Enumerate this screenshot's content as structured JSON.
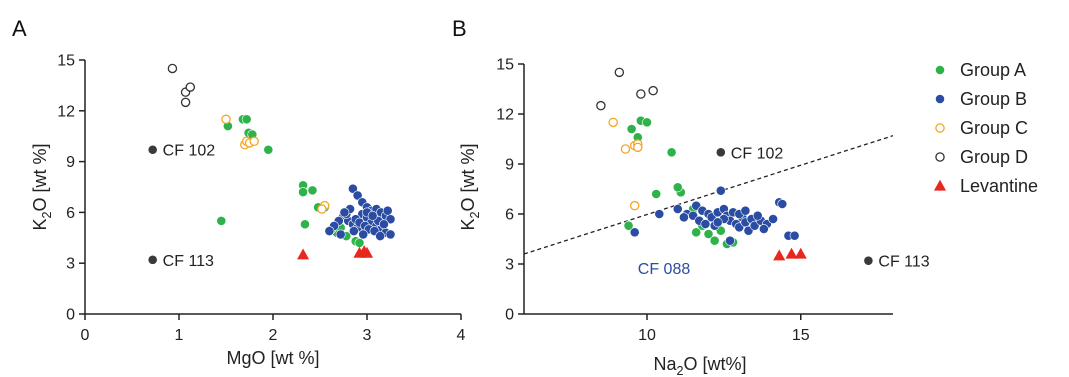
{
  "chart_data": [
    {
      "type": "scatter",
      "panel_label": "A",
      "ylabel": {
        "main": "K",
        "sub": "2",
        "rest": "O [wt %]"
      },
      "xlabel": {
        "main": "MgO [wt %]",
        "sub": "",
        "rest": ""
      },
      "xlim": [
        0,
        4
      ],
      "ylim": [
        0,
        15
      ],
      "xticks": [
        "0",
        "1",
        "2",
        "3",
        "4"
      ],
      "yticks": [
        "0",
        "3",
        "6",
        "9",
        "12",
        "15"
      ],
      "series": [
        {
          "name": "Group A",
          "marker": "circle",
          "color": "#2db34a",
          "fill": "#2db34a",
          "points": [
            [
              1.52,
              11.1
            ],
            [
              1.68,
              11.5
            ],
            [
              1.72,
              11.5
            ],
            [
              1.74,
              10.7
            ],
            [
              1.78,
              10.6
            ],
            [
              1.95,
              9.7
            ],
            [
              1.45,
              5.5
            ],
            [
              2.32,
              7.6
            ],
            [
              2.32,
              7.2
            ],
            [
              2.42,
              7.3
            ],
            [
              2.48,
              6.3
            ],
            [
              2.55,
              6.3
            ],
            [
              2.34,
              5.3
            ],
            [
              2.68,
              4.8
            ],
            [
              2.72,
              5.1
            ],
            [
              2.78,
              4.6
            ],
            [
              2.88,
              4.3
            ],
            [
              2.92,
              4.2
            ],
            [
              2.62,
              5.0
            ]
          ]
        },
        {
          "name": "Group B",
          "marker": "circle",
          "color": "#2a4da3",
          "fill": "#2a4da3",
          "points": [
            [
              2.85,
              7.4
            ],
            [
              2.9,
              7.0
            ],
            [
              2.95,
              6.6
            ],
            [
              3.0,
              6.3
            ],
            [
              3.05,
              6.1
            ],
            [
              3.1,
              6.2
            ],
            [
              3.15,
              6.0
            ],
            [
              3.2,
              5.8
            ],
            [
              3.25,
              5.6
            ],
            [
              2.75,
              5.8
            ],
            [
              2.8,
              5.5
            ],
            [
              2.85,
              5.3
            ],
            [
              2.9,
              5.1
            ],
            [
              2.95,
              5.9
            ],
            [
              3.0,
              5.7
            ],
            [
              3.05,
              5.4
            ],
            [
              3.1,
              5.2
            ],
            [
              3.15,
              5.0
            ],
            [
              3.2,
              4.8
            ],
            [
              3.25,
              4.7
            ],
            [
              2.7,
              5.5
            ],
            [
              2.78,
              5.9
            ],
            [
              2.82,
              6.2
            ],
            [
              2.88,
              5.6
            ],
            [
              2.92,
              5.4
            ],
            [
              2.98,
              5.2
            ],
            [
              3.02,
              5.0
            ],
            [
              3.08,
              4.9
            ],
            [
              3.12,
              5.5
            ],
            [
              3.18,
              5.3
            ],
            [
              2.65,
              5.2
            ],
            [
              2.6,
              4.9
            ],
            [
              2.72,
              4.7
            ],
            [
              3.22,
              6.1
            ],
            [
              3.0,
              6.0
            ],
            [
              2.96,
              4.7
            ],
            [
              2.86,
              4.9
            ],
            [
              3.06,
              5.8
            ],
            [
              2.76,
              6.0
            ],
            [
              3.14,
              4.6
            ]
          ]
        },
        {
          "name": "Group C",
          "marker": "circle-open",
          "color": "#f5a623",
          "fill": "#ffffff",
          "points": [
            [
              1.5,
              11.5
            ],
            [
              1.7,
              10.0
            ],
            [
              1.72,
              10.2
            ],
            [
              1.75,
              10.1
            ],
            [
              1.8,
              10.2
            ],
            [
              2.55,
              6.4
            ],
            [
              2.52,
              6.2
            ]
          ]
        },
        {
          "name": "Group D",
          "marker": "circle-open",
          "color": "#333333",
          "fill": "#ffffff",
          "points": [
            [
              0.93,
              14.5
            ],
            [
              1.07,
              13.1
            ],
            [
              1.12,
              13.4
            ],
            [
              1.07,
              12.5
            ]
          ]
        },
        {
          "name": "Levantine",
          "marker": "triangle",
          "color": "#e8281e",
          "fill": "#e8281e",
          "points": [
            [
              2.32,
              3.5
            ],
            [
              2.92,
              3.6
            ],
            [
              2.97,
              3.7
            ],
            [
              3.0,
              3.6
            ]
          ]
        },
        {
          "name": "",
          "marker": "circle",
          "color": "#3a3a3a",
          "fill": "#3a3a3a",
          "points": [
            [
              0.72,
              9.7
            ],
            [
              0.72,
              3.2
            ]
          ]
        }
      ],
      "annotations": [
        {
          "text": "CF 102",
          "x": 0.72,
          "y": 9.7,
          "color": "#222222"
        },
        {
          "text": "CF 113",
          "x": 0.72,
          "y": 3.2,
          "color": "#222222"
        }
      ]
    },
    {
      "type": "scatter",
      "panel_label": "B",
      "ylabel": {
        "main": "K",
        "sub": "2",
        "rest": "O [wt %]"
      },
      "xlabel": {
        "main": "Na",
        "sub": "2",
        "rest": "O [wt%]"
      },
      "xlim": [
        6,
        18
      ],
      "ylim": [
        0,
        15
      ],
      "xticks": [
        "10",
        "15"
      ],
      "yticks": [
        "0",
        "3",
        "6",
        "9",
        "12",
        "15"
      ],
      "trendline": {
        "from": [
          6,
          3.6
        ],
        "to": [
          18,
          10.7
        ],
        "style": "dashed"
      },
      "series": [
        {
          "name": "Group A",
          "marker": "circle",
          "color": "#2db34a",
          "fill": "#2db34a",
          "points": [
            [
              9.5,
              11.1
            ],
            [
              9.8,
              11.6
            ],
            [
              10.0,
              11.5
            ],
            [
              9.7,
              10.6
            ],
            [
              10.8,
              9.7
            ],
            [
              10.3,
              7.2
            ],
            [
              11.1,
              7.3
            ],
            [
              11.0,
              7.6
            ],
            [
              11.5,
              6.3
            ],
            [
              11.8,
              5.3
            ],
            [
              12.0,
              4.8
            ],
            [
              12.2,
              4.4
            ],
            [
              12.6,
              4.2
            ],
            [
              12.8,
              4.3
            ],
            [
              9.4,
              5.3
            ],
            [
              11.6,
              4.9
            ],
            [
              12.4,
              5.0
            ]
          ]
        },
        {
          "name": "Group B",
          "marker": "circle",
          "color": "#2a4da3",
          "fill": "#2a4da3",
          "points": [
            [
              12.4,
              7.4
            ],
            [
              11.6,
              6.5
            ],
            [
              11.8,
              6.2
            ],
            [
              12.0,
              6.0
            ],
            [
              12.1,
              5.8
            ],
            [
              12.3,
              6.1
            ],
            [
              12.5,
              6.3
            ],
            [
              12.6,
              5.9
            ],
            [
              12.7,
              5.6
            ],
            [
              12.9,
              5.4
            ],
            [
              13.0,
              5.2
            ],
            [
              13.1,
              5.8
            ],
            [
              13.2,
              5.5
            ],
            [
              13.3,
              5.0
            ],
            [
              13.4,
              5.7
            ],
            [
              13.5,
              5.3
            ],
            [
              13.7,
              5.6
            ],
            [
              13.9,
              5.4
            ],
            [
              14.1,
              5.7
            ],
            [
              14.3,
              6.7
            ],
            [
              14.4,
              6.6
            ],
            [
              14.6,
              4.7
            ],
            [
              14.8,
              4.7
            ],
            [
              11.3,
              6.0
            ],
            [
              11.5,
              5.9
            ],
            [
              11.7,
              5.6
            ],
            [
              11.9,
              5.4
            ],
            [
              12.2,
              5.3
            ],
            [
              12.5,
              5.7
            ],
            [
              12.8,
              6.1
            ],
            [
              13.0,
              6.0
            ],
            [
              13.6,
              5.9
            ],
            [
              11.0,
              6.3
            ],
            [
              11.2,
              5.8
            ],
            [
              10.4,
              6.0
            ],
            [
              9.6,
              4.9
            ],
            [
              12.7,
              4.4
            ],
            [
              13.2,
              6.2
            ],
            [
              13.8,
              5.1
            ],
            [
              12.3,
              5.5
            ]
          ]
        },
        {
          "name": "Group C",
          "marker": "circle-open",
          "color": "#f5a623",
          "fill": "#ffffff",
          "points": [
            [
              8.9,
              11.5
            ],
            [
              9.3,
              9.9
            ],
            [
              9.6,
              10.1
            ],
            [
              9.7,
              10.2
            ],
            [
              9.7,
              10.0
            ],
            [
              9.6,
              6.5
            ]
          ]
        },
        {
          "name": "Group D",
          "marker": "circle-open",
          "color": "#333333",
          "fill": "#ffffff",
          "points": [
            [
              8.5,
              12.5
            ],
            [
              9.1,
              14.5
            ],
            [
              9.8,
              13.2
            ],
            [
              10.2,
              13.4
            ]
          ]
        },
        {
          "name": "Levantine",
          "marker": "triangle",
          "color": "#e8281e",
          "fill": "#e8281e",
          "points": [
            [
              14.3,
              3.5
            ],
            [
              14.7,
              3.6
            ],
            [
              15.0,
              3.6
            ]
          ]
        },
        {
          "name": "",
          "marker": "circle",
          "color": "#3a3a3a",
          "fill": "#3a3a3a",
          "points": [
            [
              12.4,
              9.7
            ],
            [
              17.2,
              3.2
            ]
          ]
        }
      ],
      "annotations": [
        {
          "text": "CF 102",
          "x": 12.4,
          "y": 9.7,
          "color": "#222222"
        },
        {
          "text": "CF 113",
          "x": 17.2,
          "y": 3.2,
          "color": "#222222"
        },
        {
          "text": "CF 088",
          "x": 9.7,
          "y": 3.6,
          "color": "#2a4da3"
        }
      ]
    }
  ],
  "legend": {
    "placement": "right",
    "items": [
      {
        "label": "Group A",
        "marker": "circle",
        "color": "#2db34a",
        "fill": "#2db34a"
      },
      {
        "label": "Group B",
        "marker": "circle",
        "color": "#2a4da3",
        "fill": "#2a4da3"
      },
      {
        "label": "Group C",
        "marker": "circle-open",
        "color": "#f5a623",
        "fill": "#ffffff"
      },
      {
        "label": "Group D",
        "marker": "circle-open",
        "color": "#333333",
        "fill": "#ffffff"
      },
      {
        "label": "Levantine",
        "marker": "triangle",
        "color": "#e8281e",
        "fill": "#e8281e"
      }
    ]
  }
}
